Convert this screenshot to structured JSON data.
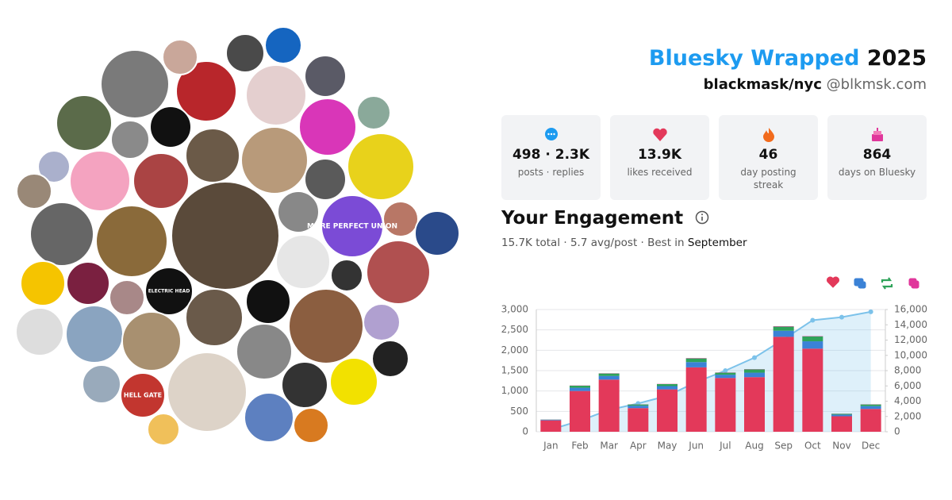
{
  "header": {
    "title": "Bluesky Wrapped",
    "year": "2025",
    "display_name": "blackmask/nyc",
    "handle": "@blkmsk.com"
  },
  "avatar_texts": [
    "MORE PERFECT UNION",
    "HELL GATE",
    "ELECTRIC HEAD"
  ],
  "stats": [
    {
      "value": "498 · 2.3K",
      "label": "posts · replies"
    },
    {
      "value": "13.9K",
      "label": "likes received"
    },
    {
      "value": "46",
      "label": "day posting streak"
    },
    {
      "value": "864",
      "label": "days on Bluesky"
    }
  ],
  "engagement": {
    "title": "Your Engagement",
    "summary": "15.7K total · 5.7 avg/post · Best in",
    "best": "September"
  },
  "chart_data": {
    "type": "bar",
    "categories": [
      "Jan",
      "Feb",
      "Mar",
      "Apr",
      "May",
      "Jun",
      "Jul",
      "Aug",
      "Sep",
      "Oct",
      "Nov",
      "Dec"
    ],
    "series": [
      {
        "color": "#e3395a",
        "values": [
          280,
          1000,
          1280,
          580,
          1040,
          1580,
          1320,
          1340,
          2330,
          2040,
          380,
          560
        ]
      },
      {
        "color": "#3b82d6",
        "values": [
          15,
          80,
          90,
          60,
          80,
          130,
          80,
          110,
          150,
          180,
          40,
          70
        ]
      },
      {
        "color": "#2fa35a",
        "values": [
          5,
          50,
          60,
          30,
          50,
          90,
          50,
          80,
          100,
          120,
          20,
          40
        ]
      },
      {
        "color": "#e0379b",
        "values": [
          2,
          5,
          5,
          3,
          5,
          8,
          5,
          6,
          10,
          8,
          3,
          4
        ]
      },
      {
        "color": "#7cc2ea",
        "axis": "y2",
        "values": [
          300,
          1430,
          2860,
          3700,
          4700,
          6500,
          8000,
          9700,
          12100,
          14600,
          15000,
          15700
        ]
      }
    ],
    "ylim": [
      0,
      3000
    ],
    "yticks": [
      0,
      500,
      {
        "value": 1000,
        "label": "1,000"
      },
      {
        "value": 1500,
        "label": "1,500"
      },
      {
        "value": 2000,
        "label": "2,000"
      },
      {
        "value": 2500,
        "label": "2,500"
      },
      {
        "value": 3000,
        "label": "3,000"
      }
    ],
    "y2lim": [
      0,
      16000
    ],
    "y2ticks": [
      0,
      {
        "value": 2000,
        "label": "2,000"
      },
      {
        "value": 4000,
        "label": "4,000"
      },
      {
        "value": 6000,
        "label": "6,000"
      },
      {
        "value": 8000,
        "label": "8,000"
      },
      {
        "value": 10000,
        "label": "10,000"
      },
      {
        "value": 12000,
        "label": "12,000"
      },
      {
        "value": 14000,
        "label": "14,000"
      },
      {
        "value": 16000,
        "label": "16,000"
      }
    ],
    "grid": true
  }
}
